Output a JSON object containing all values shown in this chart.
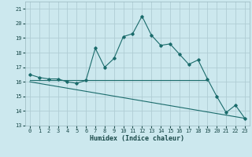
{
  "title": "",
  "xlabel": "Humidex (Indice chaleur)",
  "bg_color": "#cce8ee",
  "grid_color": "#b0cdd4",
  "line_color": "#1a6b6b",
  "xlim": [
    -0.5,
    23.5
  ],
  "ylim": [
    13,
    21.5
  ],
  "yticks": [
    13,
    14,
    15,
    16,
    17,
    18,
    19,
    20,
    21
  ],
  "xticks": [
    0,
    1,
    2,
    3,
    4,
    5,
    6,
    7,
    8,
    9,
    10,
    11,
    12,
    13,
    14,
    15,
    16,
    17,
    18,
    19,
    20,
    21,
    22,
    23
  ],
  "series1_x": [
    0,
    1,
    2,
    3,
    4,
    5,
    6,
    7,
    8,
    9,
    10,
    11,
    12,
    13,
    14,
    15,
    16,
    17,
    18,
    19,
    20,
    21,
    22,
    23
  ],
  "series1_y": [
    16.5,
    16.3,
    16.2,
    16.2,
    16.0,
    15.9,
    16.1,
    18.3,
    17.0,
    17.6,
    19.1,
    19.3,
    20.5,
    19.2,
    18.5,
    18.6,
    17.9,
    17.2,
    17.5,
    16.2,
    15.0,
    13.9,
    14.4,
    13.5
  ],
  "series2_x": [
    0,
    19
  ],
  "series2_y": [
    16.1,
    16.1
  ],
  "series3_x": [
    0,
    23
  ],
  "series3_y": [
    16.0,
    13.5
  ]
}
